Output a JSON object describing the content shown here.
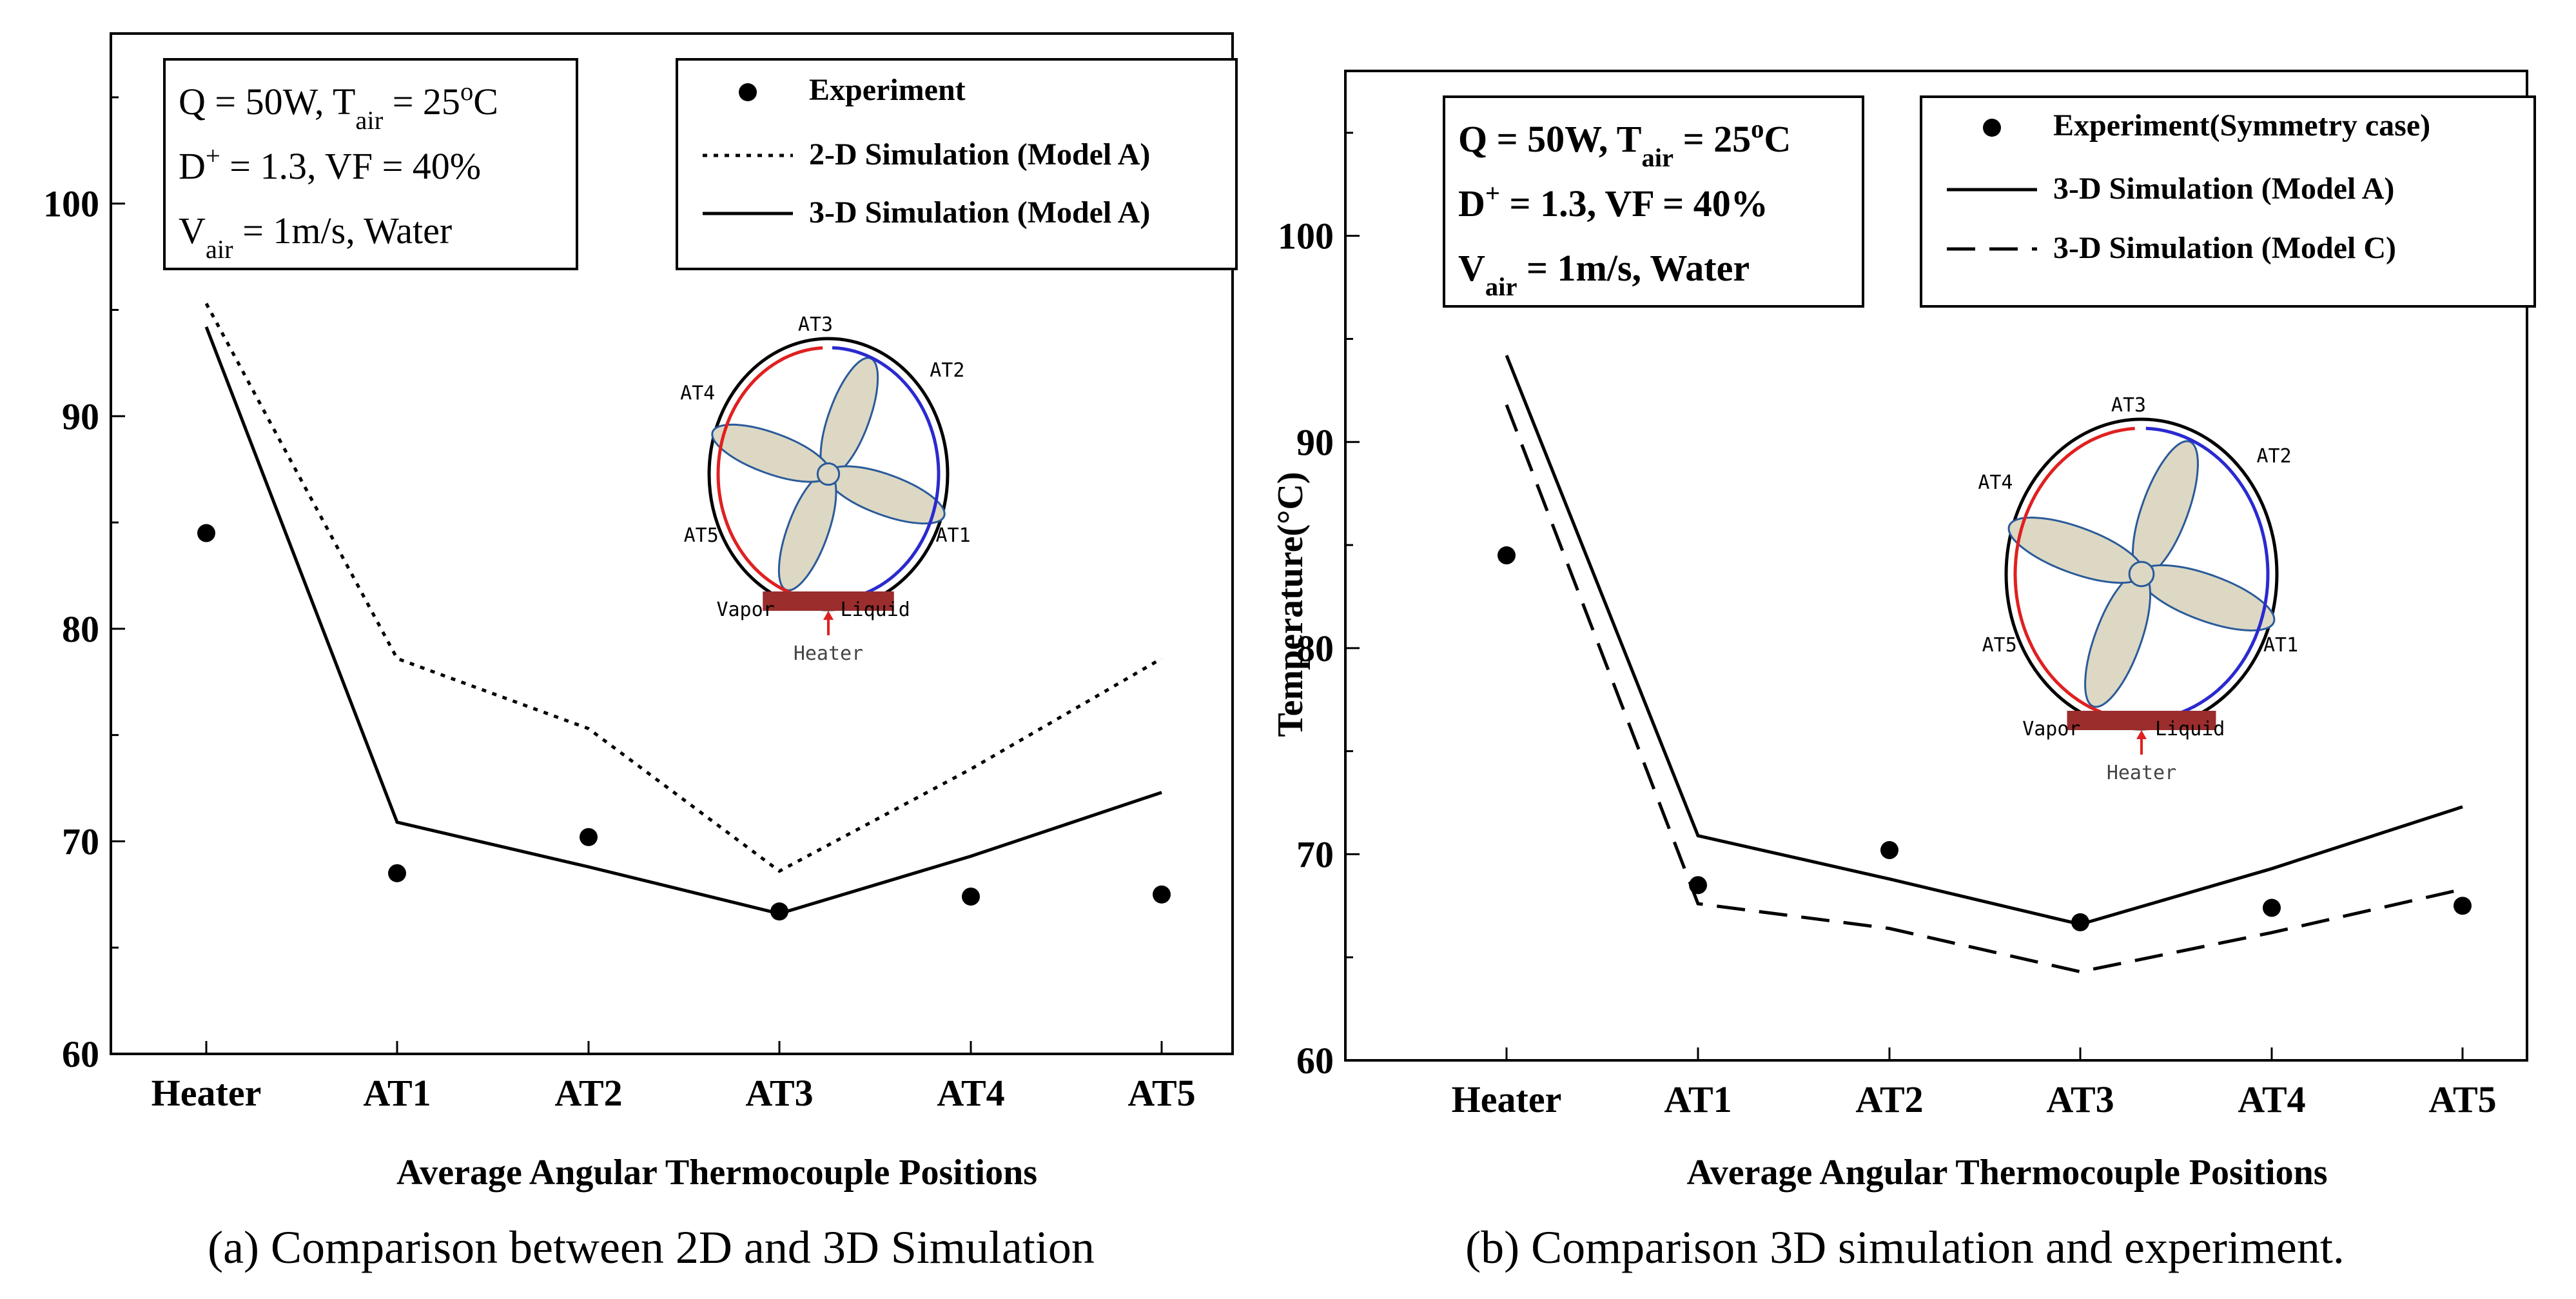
{
  "colors": {
    "axis": "#000000",
    "model_a": "#000000",
    "inset_red": "#e02020",
    "inset_blue": "#2a2ad0",
    "inset_blade": "#dcd8c4",
    "inset_blade_stroke": "#2a5a9a",
    "heater_block": "#9b2d2d"
  },
  "inset": {
    "labels": [
      "AT3",
      "AT2",
      "AT4",
      "AT1",
      "AT5",
      "Vapor",
      "Liquid",
      "Heater"
    ],
    "icon": "fan-thermosyphon-icon"
  },
  "chart_data": [
    {
      "type": "line",
      "categories": [
        "Heater",
        "AT1",
        "AT2",
        "AT3",
        "AT4",
        "AT5"
      ],
      "series": [
        {
          "name": "Experiment",
          "style": "dots",
          "values": [
            84.5,
            68.5,
            70.2,
            66.7,
            67.4,
            67.5
          ]
        },
        {
          "name": "2-D Simulation (Model A)",
          "style": "dotted",
          "values": [
            95.3,
            78.6,
            75.3,
            68.6,
            73.4,
            78.6
          ]
        },
        {
          "name": "3-D Simulation (Model A)",
          "style": "solid",
          "values": [
            94.2,
            70.9,
            68.8,
            66.6,
            69.3,
            72.3
          ]
        }
      ],
      "title": "",
      "xlabel": "Average Angular Thermocouple Positions",
      "ylabel": "",
      "ylim": [
        60,
        108
      ],
      "yticks": [
        60,
        70,
        80,
        90,
        100
      ],
      "info": {
        "line1_a": "Q = 50W, T",
        "line1_sub": "air",
        "line1_b": " = 25",
        "line1_sup": "o",
        "line1_c": "C",
        "line2_a": "D",
        "line2_sup": "+",
        "line2_b": " = 1.3, VF = 40%",
        "line3_a": "V",
        "line3_sub": "air",
        "line3_b": " = 1m/s, Water"
      },
      "caption": "(a) Comparison between 2D and 3D Simulation"
    },
    {
      "type": "line",
      "categories": [
        "Heater",
        "AT1",
        "AT2",
        "AT3",
        "AT4",
        "AT5"
      ],
      "series": [
        {
          "name": "Experiment(Symmetry case)",
          "style": "dots",
          "values": [
            84.5,
            68.5,
            70.2,
            66.7,
            67.4,
            67.5
          ]
        },
        {
          "name": "3-D Simulation (Model A)",
          "style": "solid",
          "values": [
            94.2,
            70.9,
            68.8,
            66.6,
            69.3,
            72.3
          ]
        },
        {
          "name": "3-D Simulation (Model C)",
          "style": "dashed",
          "values": [
            91.8,
            67.6,
            66.4,
            64.3,
            66.2,
            68.3
          ]
        }
      ],
      "title": "",
      "xlabel": "Average Angular Thermocouple Positions",
      "ylabel": "Temperature(°C)",
      "ylim": [
        60,
        108
      ],
      "yticks": [
        60,
        70,
        80,
        90,
        100
      ],
      "info": {
        "line1_a": "Q = 50W, T",
        "line1_sub": "air",
        "line1_b": " = 25",
        "line1_sup": "o",
        "line1_c": "C",
        "line2_a": "D",
        "line2_sup": "+",
        "line2_b": " = 1.3, VF = 40%",
        "line3_a": "V",
        "line3_sub": "air",
        "line3_b": " = 1m/s, Water"
      },
      "caption": "(b) Comparison 3D simulation and experiment."
    }
  ]
}
